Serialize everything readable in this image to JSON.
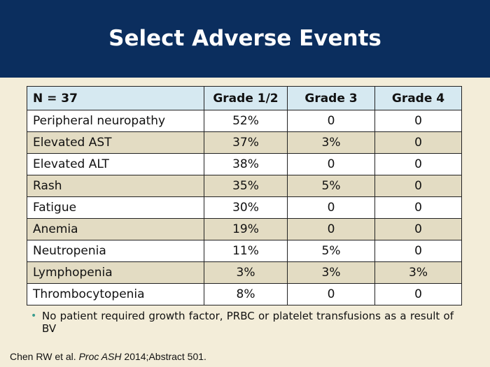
{
  "slide": {
    "title": "Select Adverse Events"
  },
  "table": {
    "headers": [
      "N = 37",
      "Grade 1/2",
      "Grade 3",
      "Grade 4"
    ],
    "rows": [
      [
        "Peripheral neuropathy",
        "52%",
        "0",
        "0"
      ],
      [
        "Elevated AST",
        "37%",
        "3%",
        "0"
      ],
      [
        "Elevated ALT",
        "38%",
        "0",
        "0"
      ],
      [
        "Rash",
        "35%",
        "5%",
        "0"
      ],
      [
        "Fatigue",
        "30%",
        "0",
        "0"
      ],
      [
        "Anemia",
        "19%",
        "0",
        "0"
      ],
      [
        "Neutropenia",
        "11%",
        "5%",
        "0"
      ],
      [
        "Lymphopenia",
        "3%",
        "3%",
        "3%"
      ],
      [
        "Thrombocytopenia",
        "8%",
        "0",
        "0"
      ]
    ]
  },
  "note": {
    "bullet": "•",
    "text": "No patient required growth factor, PRBC or platelet transfusions as a result of BV"
  },
  "citation": {
    "authors": "Chen RW et al. ",
    "journal": "Proc ASH",
    "rest": " 2014;Abstract 501."
  },
  "colors": {
    "header_bg": "#0b2e5e",
    "page_bg": "#f3edd9",
    "table_header_bg": "#d6e9f1",
    "row_alt_bg": "#e3dcc3",
    "bullet": "#3a9d8f"
  }
}
